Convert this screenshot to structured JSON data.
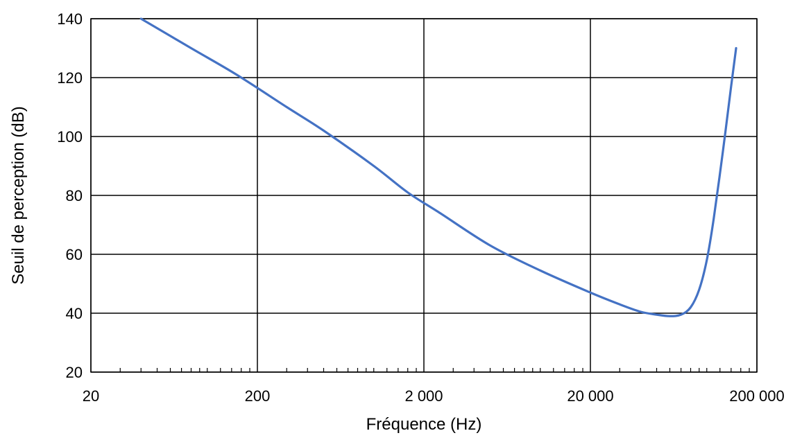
{
  "chart_data": {
    "type": "line",
    "title": "",
    "xlabel": "Fréquence (Hz)",
    "ylabel": "Seuil de perception (dB)",
    "x_scale": "log",
    "xlim": [
      20,
      200000
    ],
    "ylim": [
      20,
      140
    ],
    "grid": true,
    "x_ticks": [
      {
        "value": 20,
        "label": "20"
      },
      {
        "value": 200,
        "label": "200"
      },
      {
        "value": 2000,
        "label": "2 000"
      },
      {
        "value": 20000,
        "label": "20 000"
      },
      {
        "value": 200000,
        "label": "200 000"
      }
    ],
    "y_ticks": [
      {
        "value": 20,
        "label": "20"
      },
      {
        "value": 40,
        "label": "40"
      },
      {
        "value": 60,
        "label": "60"
      },
      {
        "value": 80,
        "label": "80"
      },
      {
        "value": 100,
        "label": "100"
      },
      {
        "value": 120,
        "label": "120"
      },
      {
        "value": 140,
        "label": "140"
      }
    ],
    "series": [
      {
        "color": "#4472C4",
        "points": [
          [
            40,
            140
          ],
          [
            80,
            130
          ],
          [
            150,
            121
          ],
          [
            300,
            110
          ],
          [
            500,
            102
          ],
          [
            1000,
            90
          ],
          [
            1600,
            81
          ],
          [
            2500,
            74
          ],
          [
            5000,
            63
          ],
          [
            10000,
            54.5
          ],
          [
            20000,
            47
          ],
          [
            30000,
            43
          ],
          [
            40000,
            40.5
          ],
          [
            50000,
            39.5
          ],
          [
            60000,
            39
          ],
          [
            70000,
            39.5
          ],
          [
            80000,
            42
          ],
          [
            90000,
            48
          ],
          [
            100000,
            58
          ],
          [
            110000,
            72
          ],
          [
            125000,
            95
          ],
          [
            140000,
            117
          ],
          [
            150000,
            130
          ]
        ]
      }
    ]
  }
}
